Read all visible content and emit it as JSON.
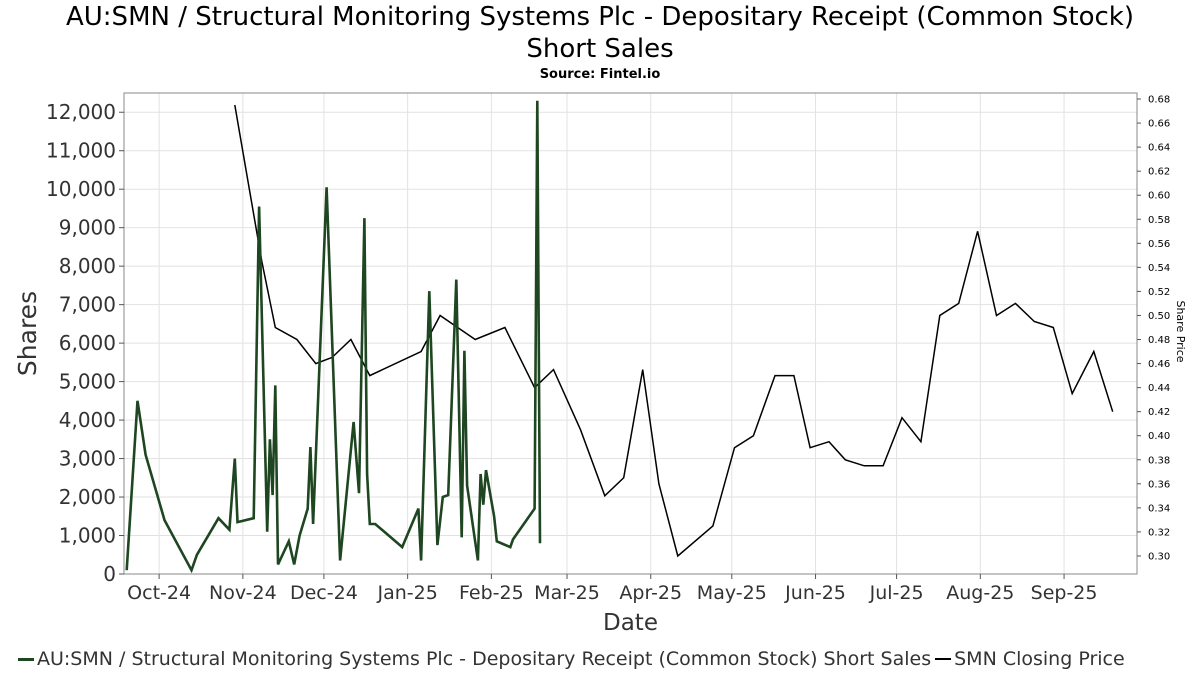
{
  "header": {
    "title_line1": "AU:SMN / Structural Monitoring Systems Plc - Depositary Receipt (Common Stock)",
    "title_line2": "Short Sales",
    "source": "Source: Fintel.io"
  },
  "legend": {
    "items": [
      {
        "label": "AU:SMN / Structural Monitoring Systems Plc - Depositary Receipt (Common Stock) Short Sales",
        "color": "#1e4620"
      },
      {
        "label": "SMN Closing Price",
        "color": "#000000"
      }
    ]
  },
  "chart_data": {
    "type": "line",
    "xlabel": "Date",
    "ylabel": "Shares",
    "y2label": "Share Price",
    "ylim": [
      0,
      12500
    ],
    "y2lim": [
      0.285,
      0.685
    ],
    "xlim": [
      "2024-09-18",
      "2025-09-28"
    ],
    "yticks": [
      0,
      1000,
      2000,
      3000,
      4000,
      5000,
      6000,
      7000,
      8000,
      9000,
      10000,
      11000,
      12000
    ],
    "yticklabels": [
      "0",
      "1,000",
      "2,000",
      "3,000",
      "4,000",
      "5,000",
      "6,000",
      "7,000",
      "8,000",
      "9,000",
      "10,000",
      "11,000",
      "12,000"
    ],
    "y2ticks": [
      0.3,
      0.32,
      0.34,
      0.36,
      0.38,
      0.4,
      0.42,
      0.44,
      0.46,
      0.48,
      0.5,
      0.52,
      0.54,
      0.56,
      0.58,
      0.6,
      0.62,
      0.64,
      0.66,
      0.68
    ],
    "y2ticklabels": [
      "0.30",
      "0.32",
      "0.34",
      "0.36",
      "0.38",
      "0.40",
      "0.42",
      "0.44",
      "0.46",
      "0.48",
      "0.50",
      "0.52",
      "0.54",
      "0.56",
      "0.58",
      "0.60",
      "0.62",
      "0.64",
      "0.66",
      "0.68"
    ],
    "xticks": [
      "2024-10-01",
      "2024-11-01",
      "2024-12-01",
      "2025-01-01",
      "2025-02-01",
      "2025-03-01",
      "2025-04-01",
      "2025-05-01",
      "2025-06-01",
      "2025-07-01",
      "2025-08-01",
      "2025-09-01"
    ],
    "xticklabels": [
      "Oct-24",
      "Nov-24",
      "Dec-24",
      "Jan-25",
      "Feb-25",
      "Mar-25",
      "Apr-25",
      "May-25",
      "Jun-25",
      "Jul-25",
      "Aug-25",
      "Sep-25"
    ],
    "grid": true,
    "legend_position": "bottom",
    "series": [
      {
        "name": "AU:SMN / Structural Monitoring Systems Plc - Depositary Receipt (Common Stock) Short Sales",
        "axis": "left",
        "color": "#1e4620",
        "points": [
          [
            "2024-09-19",
            100
          ],
          [
            "2024-09-23",
            4500
          ],
          [
            "2024-09-26",
            3100
          ],
          [
            "2024-10-03",
            1400
          ],
          [
            "2024-10-13",
            100
          ],
          [
            "2024-10-15",
            500
          ],
          [
            "2024-10-23",
            1450
          ],
          [
            "2024-10-27",
            1150
          ],
          [
            "2024-10-29",
            3000
          ],
          [
            "2024-10-30",
            1350
          ],
          [
            "2024-11-05",
            1450
          ],
          [
            "2024-11-07",
            9550
          ],
          [
            "2024-11-10",
            1100
          ],
          [
            "2024-11-11",
            3500
          ],
          [
            "2024-11-12",
            2050
          ],
          [
            "2024-11-13",
            4900
          ],
          [
            "2024-11-14",
            250
          ],
          [
            "2024-11-18",
            850
          ],
          [
            "2024-11-20",
            250
          ],
          [
            "2024-11-22",
            1000
          ],
          [
            "2024-11-25",
            1700
          ],
          [
            "2024-11-26",
            3300
          ],
          [
            "2024-11-27",
            1300
          ],
          [
            "2024-12-02",
            10050
          ],
          [
            "2024-12-07",
            350
          ],
          [
            "2024-12-12",
            3950
          ],
          [
            "2024-12-14",
            2100
          ],
          [
            "2024-12-16",
            9250
          ],
          [
            "2024-12-17",
            2600
          ],
          [
            "2024-12-18",
            1300
          ],
          [
            "2024-12-20",
            1300
          ],
          [
            "2024-12-25",
            1000
          ],
          [
            "2024-12-30",
            700
          ],
          [
            "2025-01-05",
            1700
          ],
          [
            "2025-01-06",
            350
          ],
          [
            "2025-01-09",
            7350
          ],
          [
            "2025-01-12",
            750
          ],
          [
            "2025-01-14",
            2000
          ],
          [
            "2025-01-16",
            2050
          ],
          [
            "2025-01-19",
            7650
          ],
          [
            "2025-01-21",
            950
          ],
          [
            "2025-01-22",
            5800
          ],
          [
            "2025-01-23",
            2300
          ],
          [
            "2025-01-27",
            350
          ],
          [
            "2025-01-28",
            2600
          ],
          [
            "2025-01-29",
            1800
          ],
          [
            "2025-01-30",
            2700
          ],
          [
            "2025-02-02",
            1500
          ],
          [
            "2025-02-03",
            850
          ],
          [
            "2025-02-08",
            700
          ],
          [
            "2025-02-09",
            900
          ],
          [
            "2025-02-17",
            1700
          ],
          [
            "2025-02-18",
            12300
          ],
          [
            "2025-02-19",
            800
          ]
        ]
      },
      {
        "name": "SMN Closing Price",
        "axis": "right",
        "color": "#000000",
        "points": [
          [
            "2024-10-29",
            0.675
          ],
          [
            "2024-11-08",
            0.545
          ],
          [
            "2024-11-13",
            0.49
          ],
          [
            "2024-11-21",
            0.48
          ],
          [
            "2024-11-28",
            0.46
          ],
          [
            "2024-12-04",
            0.465
          ],
          [
            "2024-12-11",
            0.48
          ],
          [
            "2024-12-18",
            0.45
          ],
          [
            "2025-01-06",
            0.47
          ],
          [
            "2025-01-13",
            0.5
          ],
          [
            "2025-01-26",
            0.48
          ],
          [
            "2025-02-06",
            0.49
          ],
          [
            "2025-02-17",
            0.44
          ],
          [
            "2025-02-24",
            0.455
          ],
          [
            "2025-03-06",
            0.405
          ],
          [
            "2025-03-15",
            0.35
          ],
          [
            "2025-03-22",
            0.365
          ],
          [
            "2025-03-29",
            0.455
          ],
          [
            "2025-04-04",
            0.36
          ],
          [
            "2025-04-11",
            0.3
          ],
          [
            "2025-04-24",
            0.325
          ],
          [
            "2025-05-02",
            0.39
          ],
          [
            "2025-05-09",
            0.4
          ],
          [
            "2025-05-17",
            0.45
          ],
          [
            "2025-05-24",
            0.45
          ],
          [
            "2025-05-30",
            0.39
          ],
          [
            "2025-06-06",
            0.395
          ],
          [
            "2025-06-12",
            0.38
          ],
          [
            "2025-06-19",
            0.375
          ],
          [
            "2025-06-26",
            0.375
          ],
          [
            "2025-07-03",
            0.415
          ],
          [
            "2025-07-10",
            0.395
          ],
          [
            "2025-07-17",
            0.5
          ],
          [
            "2025-07-24",
            0.51
          ],
          [
            "2025-07-31",
            0.57
          ],
          [
            "2025-08-07",
            0.5
          ],
          [
            "2025-08-14",
            0.51
          ],
          [
            "2025-08-21",
            0.495
          ],
          [
            "2025-08-28",
            0.49
          ],
          [
            "2025-09-04",
            0.435
          ],
          [
            "2025-09-12",
            0.47
          ],
          [
            "2025-09-19",
            0.42
          ]
        ]
      }
    ]
  }
}
